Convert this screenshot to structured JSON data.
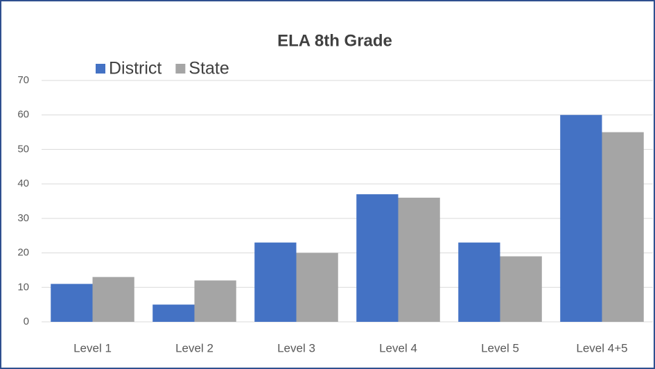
{
  "chart_data": {
    "type": "bar",
    "title": "ELA 8th Grade",
    "categories": [
      "Level 1",
      "Level 2",
      "Level 3",
      "Level 4",
      "Level 5",
      "Level 4+5"
    ],
    "series": [
      {
        "name": "District",
        "color": "#4472c4",
        "values": [
          11,
          5,
          23,
          37,
          23,
          60
        ]
      },
      {
        "name": "State",
        "color": "#a5a5a5",
        "values": [
          13,
          12,
          20,
          36,
          19,
          55
        ]
      }
    ],
    "ylim": [
      0,
      70
    ],
    "yticks": [
      0,
      10,
      20,
      30,
      40,
      50,
      60,
      70
    ],
    "grid": true,
    "legend": "top-left"
  }
}
